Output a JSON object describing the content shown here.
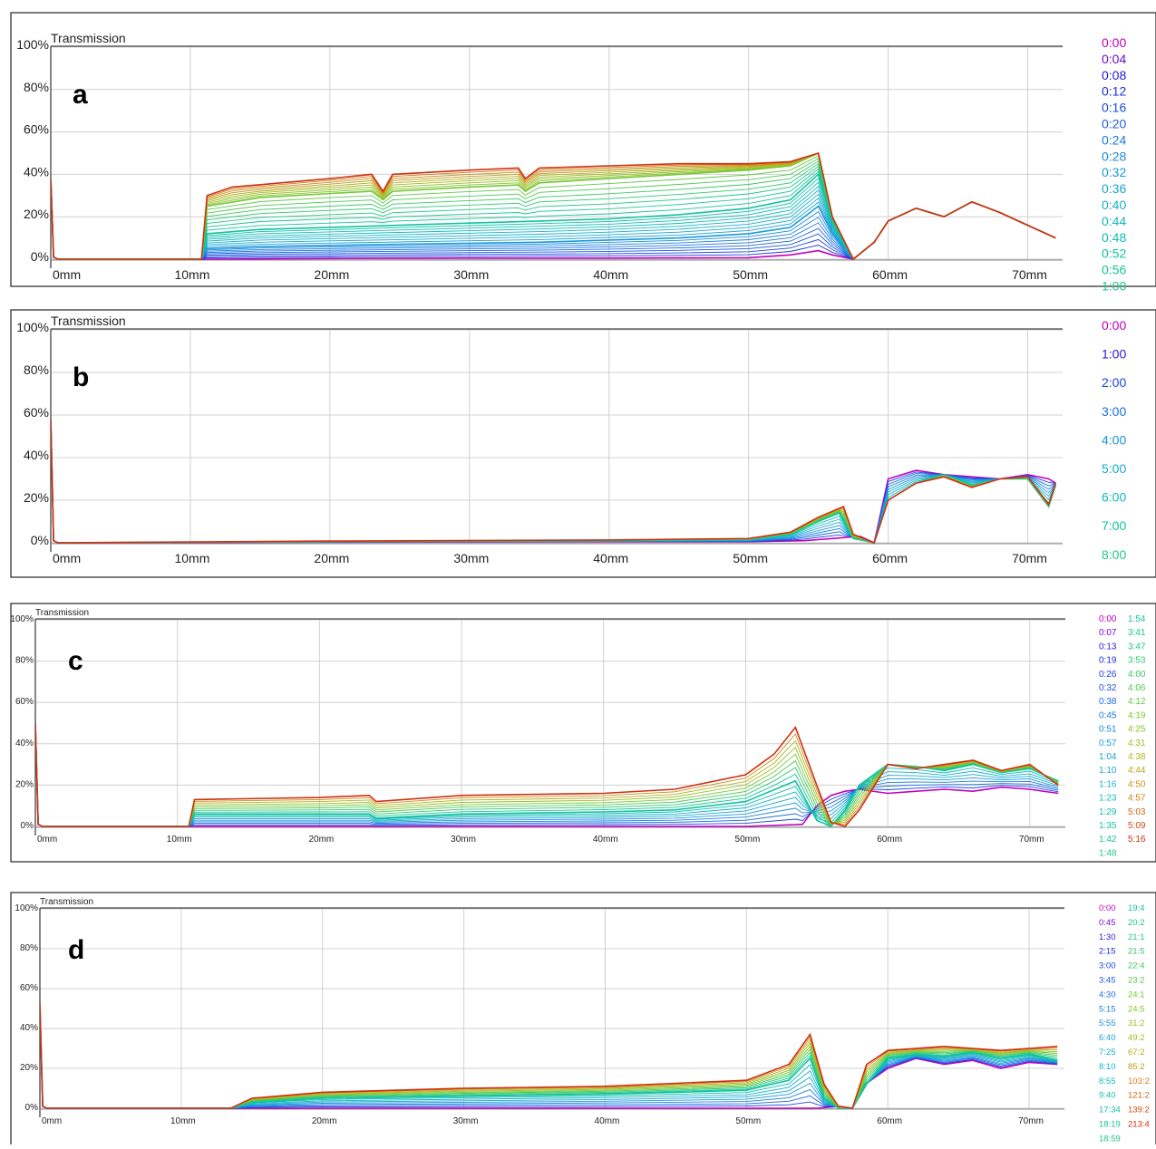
{
  "panels": [
    {
      "letter": "a",
      "ylabel": "Transmission",
      "legend_cols": [
        [
          "0:00",
          "0:04",
          "0:08",
          "0:12",
          "0:16",
          "0:20",
          "0:24",
          "0:28",
          "0:32",
          "0:36",
          "0:40",
          "0:44",
          "0:48",
          "0:52",
          "0:56",
          "1:00"
        ]
      ]
    },
    {
      "letter": "b",
      "ylabel": "Transmission",
      "legend_cols": [
        [
          "0:00",
          "1:00",
          "2:00",
          "3:00",
          "4:00",
          "5:00",
          "6:00",
          "7:00",
          "8:00"
        ]
      ]
    },
    {
      "letter": "c",
      "ylabel": "Transmission",
      "legend_cols": [
        [
          "0:00",
          "0:07",
          "0:13",
          "0:19",
          "0:26",
          "0:32",
          "0:38",
          "0:45",
          "0:51",
          "0:57",
          "1:04",
          "1:10",
          "1:16",
          "1:23",
          "1:29",
          "1:35",
          "1:42",
          "1:48"
        ],
        [
          "1:54",
          "3:41",
          "3:47",
          "3:53",
          "4:00",
          "4:06",
          "4:12",
          "4:19",
          "4:25",
          "4:31",
          "4:38",
          "4:44",
          "4:50",
          "4:57",
          "5:03",
          "5:09",
          "5:16"
        ]
      ]
    },
    {
      "letter": "d",
      "ylabel": "Transmission",
      "legend_cols": [
        [
          "0:00",
          "0:45",
          "1:30",
          "2:15",
          "3:00",
          "3:45",
          "4:30",
          "5:15",
          "5:55",
          "6:40",
          "7:25",
          "8:10",
          "8:55",
          "9:40",
          "17:34",
          "18:19",
          "18:59"
        ],
        [
          "19:4",
          "20:2",
          "21:1",
          "21:5",
          "22:4",
          "23:2",
          "24:1",
          "24:5",
          "31:2",
          "49:2",
          "67:2",
          "85:2",
          "103:2",
          "121:2",
          "139:2",
          "213:4"
        ]
      ]
    }
  ],
  "legend_colors": [
    "#c000c0",
    "#1a1ad8",
    "#1a50e0",
    "#1c7ee0",
    "#1aa0d8",
    "#14b4c8",
    "#10c0a8",
    "#18c890",
    "#40c860",
    "#80c830",
    "#b0b820",
    "#d08018",
    "#d03010"
  ],
  "chart_data": [
    {
      "type": "line",
      "title": "",
      "xlabel": "",
      "ylabel": "Transmission",
      "x_ticks": [
        "0mm",
        "10mm",
        "20mm",
        "30mm",
        "40mm",
        "50mm",
        "60mm",
        "70mm"
      ],
      "y_ticks": [
        "0%",
        "20%",
        "40%",
        "60%",
        "80%",
        "100%"
      ],
      "xlim": [
        0,
        72.5
      ],
      "ylim": [
        0,
        100
      ],
      "grid": true,
      "series": [
        {
          "name": "0:00",
          "x": [
            0,
            0.2,
            0.5,
            11,
            20,
            30,
            40,
            50,
            53,
            55,
            56,
            57.5,
            59,
            60,
            62,
            64,
            66,
            68,
            70,
            72
          ],
          "y": [
            38,
            1,
            0,
            0,
            0.3,
            0.5,
            0.5,
            0.7,
            2,
            4,
            2,
            0,
            8,
            18,
            24,
            20,
            27,
            22,
            16,
            10
          ]
        },
        {
          "name": "0:16",
          "x": [
            0,
            0.2,
            0.5,
            10.8,
            11.2,
            15,
            20,
            25,
            30,
            35,
            40,
            45,
            50,
            53,
            55,
            56,
            57.5,
            59,
            60,
            62,
            64,
            66,
            68,
            70,
            72
          ],
          "y": [
            38,
            1,
            0,
            0,
            5,
            6,
            6.5,
            7,
            7.5,
            8,
            9,
            10,
            12,
            15,
            25,
            12,
            0,
            8,
            18,
            24,
            20,
            27,
            22,
            16,
            10
          ]
        },
        {
          "name": "0:32",
          "x": [
            0,
            0.2,
            0.5,
            10.8,
            11.2,
            15,
            20,
            25,
            30,
            35,
            40,
            45,
            50,
            53,
            55,
            56,
            57.5,
            59,
            60,
            62,
            64,
            66,
            68,
            70,
            72
          ],
          "y": [
            38,
            1,
            0,
            0,
            12,
            14,
            15,
            16,
            17,
            18,
            19,
            21,
            24,
            28,
            40,
            18,
            0,
            8,
            18,
            24,
            20,
            27,
            22,
            16,
            10
          ]
        },
        {
          "name": "0:48",
          "x": [
            0,
            0.2,
            0.5,
            10.8,
            11.2,
            15,
            20,
            23,
            23.8,
            24.5,
            30,
            33.5,
            34,
            35,
            40,
            45,
            50,
            53,
            55,
            56,
            57.5,
            59,
            60,
            62,
            64,
            66,
            68,
            70,
            72
          ],
          "y": [
            38,
            1,
            0,
            0,
            25,
            29,
            31,
            32,
            28,
            32,
            34,
            35,
            32,
            36,
            38,
            40,
            42,
            44,
            50,
            20,
            0,
            8,
            18,
            24,
            20,
            27,
            22,
            16,
            10
          ]
        },
        {
          "name": "1:00",
          "x": [
            0,
            0.2,
            0.5,
            10.8,
            11.2,
            13,
            20,
            23,
            23.8,
            24.5,
            30,
            33.5,
            34,
            35,
            40,
            45,
            50,
            53,
            55,
            56,
            57.5,
            59,
            60,
            62,
            64,
            66,
            68,
            70,
            72
          ],
          "y": [
            38,
            1,
            0,
            0,
            30,
            34,
            38,
            40,
            32,
            40,
            42,
            43,
            38,
            43,
            44,
            45,
            45,
            46,
            50,
            20,
            0,
            8,
            18,
            24,
            20,
            27,
            22,
            16,
            10
          ]
        }
      ]
    },
    {
      "type": "line",
      "title": "",
      "xlabel": "",
      "ylabel": "Transmission",
      "x_ticks": [
        "0mm",
        "10mm",
        "20mm",
        "30mm",
        "40mm",
        "50mm",
        "60mm",
        "70mm"
      ],
      "y_ticks": [
        "0%",
        "20%",
        "40%",
        "60%",
        "80%",
        "100%"
      ],
      "xlim": [
        0,
        72.5
      ],
      "ylim": [
        0,
        100
      ],
      "grid": true,
      "series": [
        {
          "name": "0:00",
          "x": [
            0,
            0.2,
            0.5,
            20,
            40,
            50,
            54,
            56,
            58,
            59,
            60,
            62,
            64,
            66,
            68,
            70,
            71.5,
            72
          ],
          "y": [
            58,
            1,
            0,
            0.3,
            0.5,
            0.5,
            1,
            2,
            3,
            0,
            30,
            34,
            32,
            31,
            30,
            32,
            30,
            28
          ]
        },
        {
          "name": "4:00",
          "x": [
            0,
            0.2,
            0.5,
            20,
            40,
            50,
            53,
            55,
            56.5,
            57.5,
            59,
            60,
            62,
            64,
            66,
            68,
            70,
            71.5,
            72
          ],
          "y": [
            58,
            1,
            0,
            0.5,
            1,
            1.5,
            4,
            10,
            14,
            2,
            0,
            20,
            28,
            32,
            27,
            30,
            30,
            17,
            27
          ]
        },
        {
          "name": "8:00",
          "x": [
            0,
            0.2,
            0.5,
            20,
            40,
            50,
            53,
            55,
            56.8,
            57.5,
            59,
            60,
            62,
            64,
            66,
            68,
            70,
            71.5,
            72
          ],
          "y": [
            58,
            1,
            0,
            0.8,
            1.3,
            2,
            5,
            12,
            17,
            4,
            0,
            20,
            28,
            31,
            26,
            30,
            31,
            18,
            28
          ]
        }
      ]
    },
    {
      "type": "line",
      "title": "",
      "xlabel": "",
      "ylabel": "Transmission",
      "x_ticks": [
        "0mm",
        "10mm",
        "20mm",
        "30mm",
        "40mm",
        "50mm",
        "60mm",
        "70mm"
      ],
      "y_ticks": [
        "0%",
        "20%",
        "40%",
        "60%",
        "80%",
        "100%"
      ],
      "xlim": [
        0,
        72.5
      ],
      "ylim": [
        0,
        100
      ],
      "grid": true,
      "series": [
        {
          "name": "0:00",
          "x": [
            0,
            0.2,
            0.5,
            20,
            40,
            50,
            54,
            55,
            56,
            57,
            58,
            60,
            62,
            64,
            66,
            68,
            70,
            72
          ],
          "y": [
            50,
            1,
            0,
            0,
            0,
            0,
            1,
            10,
            15,
            17,
            18,
            16,
            17,
            18,
            17,
            19,
            18,
            16
          ]
        },
        {
          "name": "1:10",
          "x": [
            0,
            0.2,
            0.5,
            10.8,
            11.2,
            20,
            23.5,
            24,
            30,
            40,
            45,
            50,
            53.5,
            55,
            56,
            57,
            58,
            60,
            62,
            64,
            66,
            68,
            70,
            72
          ],
          "y": [
            50,
            1,
            0,
            0,
            6,
            6,
            6,
            4,
            6,
            7,
            8,
            12,
            22,
            3,
            0,
            8,
            20,
            30,
            29,
            27,
            30,
            26,
            28,
            22
          ]
        },
        {
          "name": "5:16",
          "x": [
            0,
            0.2,
            0.5,
            10.8,
            11.2,
            20,
            23.5,
            24,
            30,
            40,
            45,
            50,
            52,
            53.5,
            55,
            56,
            57,
            58,
            60,
            62,
            64,
            66,
            68,
            70,
            72
          ],
          "y": [
            50,
            1,
            0,
            0,
            13,
            14,
            15,
            12,
            15,
            16,
            18,
            25,
            35,
            48,
            20,
            2,
            0,
            8,
            30,
            28,
            30,
            32,
            27,
            30,
            20
          ]
        }
      ]
    },
    {
      "type": "line",
      "title": "",
      "xlabel": "",
      "ylabel": "Transmission",
      "x_ticks": [
        "0mm",
        "10mm",
        "20mm",
        "30mm",
        "40mm",
        "50mm",
        "60mm",
        "70mm"
      ],
      "y_ticks": [
        "0%",
        "20%",
        "40%",
        "60%",
        "80%",
        "100%"
      ],
      "xlim": [
        0,
        72.5
      ],
      "ylim": [
        0,
        100
      ],
      "grid": true,
      "series": [
        {
          "name": "0:00",
          "x": [
            0,
            0.2,
            0.5,
            20,
            40,
            50,
            55,
            56.5,
            57.5,
            58,
            60,
            62,
            64,
            66,
            68,
            70,
            72
          ],
          "y": [
            52,
            1,
            0,
            0,
            0,
            0,
            0,
            1,
            0,
            10,
            20,
            25,
            22,
            24,
            20,
            23,
            22
          ]
        },
        {
          "name": "8:55",
          "x": [
            0,
            0.2,
            0.5,
            13.5,
            15,
            20,
            30,
            40,
            50,
            53,
            54.5,
            55.5,
            56.5,
            57.5,
            58.5,
            60,
            62,
            64,
            66,
            68,
            70,
            72
          ],
          "y": [
            52,
            1,
            0,
            0,
            3,
            5,
            6,
            7,
            9,
            14,
            25,
            5,
            0,
            0,
            12,
            25,
            27,
            26,
            28,
            25,
            27,
            24
          ]
        },
        {
          "name": "213:4",
          "x": [
            0,
            0.2,
            0.5,
            13.5,
            15,
            20,
            30,
            40,
            50,
            53,
            54.5,
            55.5,
            56.5,
            57.5,
            58.5,
            60,
            62,
            64,
            66,
            68,
            70,
            72
          ],
          "y": [
            52,
            1,
            0,
            0,
            5,
            8,
            10,
            11,
            14,
            22,
            37,
            12,
            1,
            0,
            22,
            29,
            30,
            31,
            30,
            29,
            30,
            31
          ]
        }
      ]
    }
  ]
}
